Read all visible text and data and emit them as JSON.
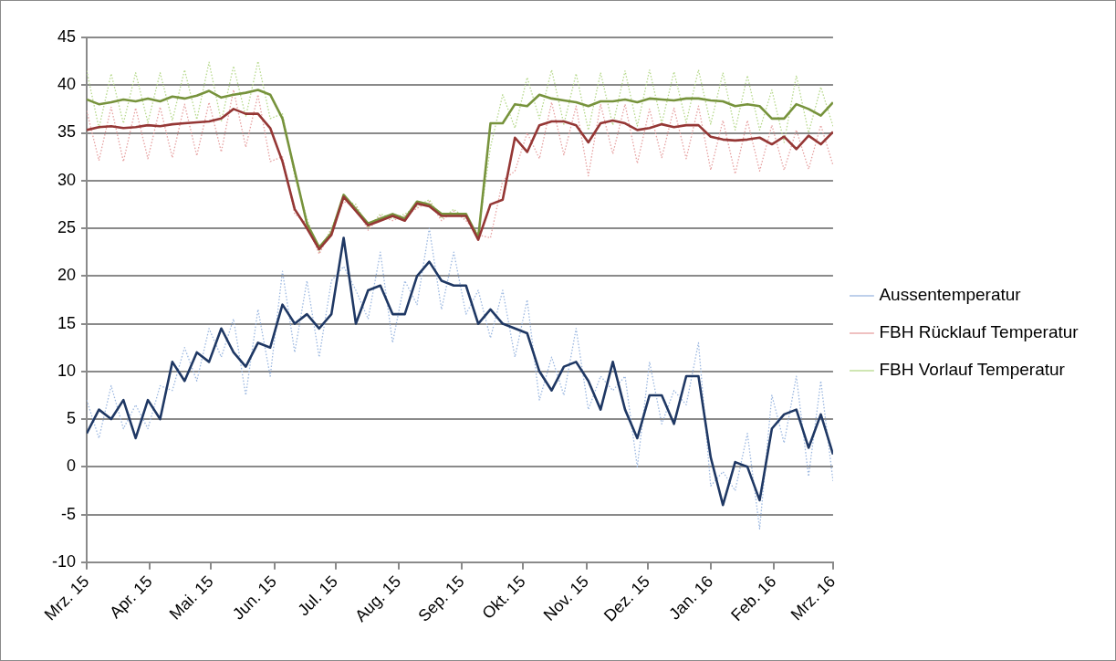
{
  "chart_data": {
    "type": "line",
    "x": [
      "2015-03-01",
      "2015-03-07",
      "2015-03-13",
      "2015-03-19",
      "2015-03-25",
      "2015-03-31",
      "2015-04-06",
      "2015-04-12",
      "2015-04-18",
      "2015-04-24",
      "2015-04-30",
      "2015-05-06",
      "2015-05-12",
      "2015-05-18",
      "2015-05-24",
      "2015-05-30",
      "2015-06-05",
      "2015-06-11",
      "2015-06-17",
      "2015-06-23",
      "2015-06-29",
      "2015-07-05",
      "2015-07-11",
      "2015-07-17",
      "2015-07-23",
      "2015-07-29",
      "2015-08-04",
      "2015-08-10",
      "2015-08-16",
      "2015-08-22",
      "2015-08-28",
      "2015-09-03",
      "2015-09-09",
      "2015-09-15",
      "2015-09-21",
      "2015-09-27",
      "2015-10-03",
      "2015-10-09",
      "2015-10-15",
      "2015-10-21",
      "2015-10-27",
      "2015-11-02",
      "2015-11-08",
      "2015-11-14",
      "2015-11-20",
      "2015-11-26",
      "2015-12-02",
      "2015-12-08",
      "2015-12-14",
      "2015-12-20",
      "2015-12-26",
      "2016-01-01",
      "2016-01-07",
      "2016-01-13",
      "2016-01-19",
      "2016-01-25",
      "2016-01-31",
      "2016-02-06",
      "2016-02-12",
      "2016-02-18",
      "2016-02-24",
      "2016-03-01"
    ],
    "series": [
      {
        "name": "Aussentemperatur",
        "color": "#9bb7e0",
        "line_style": "dotted",
        "values": [
          7,
          3,
          8.5,
          4,
          6.5,
          4,
          8.5,
          8,
          12.5,
          9,
          14.5,
          11.5,
          15.5,
          7.5,
          16.5,
          9.5,
          20.5,
          12,
          19.5,
          11.5,
          19.5,
          21,
          18.5,
          15.5,
          22.5,
          13,
          19.5,
          17,
          25,
          16.5,
          22.5,
          16,
          18.5,
          13.5,
          18.5,
          11.5,
          17.5,
          7,
          11.5,
          7.5,
          14.5,
          6,
          9.5,
          8,
          9.5,
          0,
          11,
          4.5,
          8,
          6.5,
          13,
          -2,
          -0.5,
          -2.5,
          3.5,
          -6.5,
          7.5,
          2.5,
          9.5,
          -1,
          9,
          -1.5
        ]
      },
      {
        "name": "FBH Rücklauf Temperatur",
        "color": "#e6a0a0",
        "line_style": "dotted",
        "values": [
          37.3,
          32.1,
          37.7,
          32,
          37.6,
          32.3,
          37.7,
          32.4,
          38,
          32.6,
          38.2,
          33,
          39.5,
          33.5,
          39,
          32,
          32.5,
          26.5,
          25.5,
          22.3,
          24.8,
          27.8,
          27.3,
          24.8,
          26.3,
          25.8,
          26.3,
          27.1,
          27.8,
          25.8,
          26.8,
          25.8,
          24.3,
          24,
          30,
          31,
          35,
          32.3,
          38.2,
          32.7,
          37.8,
          30.5,
          38,
          32.8,
          38,
          31.8,
          37.5,
          32.4,
          37.6,
          32.3,
          37.8,
          31.1,
          36.3,
          30.7,
          36.3,
          31,
          35.8,
          31.1,
          35.3,
          31.2,
          35.8,
          31.6
        ]
      },
      {
        "name": "FBH Vorlauf Temperatur",
        "color": "#b5d88a",
        "line_style": "dotted",
        "values": [
          41.5,
          35.5,
          41.2,
          36,
          41.3,
          36.1,
          41.3,
          36.3,
          41.6,
          36.4,
          42.4,
          36.2,
          42,
          36.7,
          42.5,
          36.5,
          37,
          30.5,
          26,
          22.5,
          25,
          28,
          27.5,
          25,
          26.5,
          26,
          26.5,
          27.3,
          28,
          26,
          27,
          26,
          24.5,
          33.5,
          39,
          35.5,
          40.8,
          36.5,
          41.6,
          35.9,
          41.2,
          35.3,
          41.3,
          35.8,
          41.5,
          35.7,
          41.6,
          36,
          41.4,
          36.1,
          41.6,
          35.9,
          41.3,
          35.3,
          41,
          35.3,
          39.5,
          34,
          41,
          35,
          39.8,
          35.7
        ]
      },
      {
        "color": "#1f3864",
        "line_style": "solid",
        "values": [
          3.5,
          6,
          5,
          7,
          3,
          7,
          5,
          11,
          9,
          12,
          11,
          14.5,
          12,
          10.5,
          13,
          12.5,
          17,
          15,
          16,
          14.5,
          16,
          24,
          15,
          18.5,
          19,
          16,
          16,
          20,
          21.5,
          19.5,
          19,
          19,
          15,
          16.5,
          15,
          14.5,
          14,
          10,
          8,
          10.5,
          11,
          9,
          6,
          11,
          6,
          3,
          7.5,
          7.5,
          4.5,
          9.5,
          9.5,
          1,
          -4,
          0.5,
          0,
          -3.5,
          4,
          5.5,
          6,
          2,
          5.5,
          1.3
        ]
      },
      {
        "color": "#953735",
        "line_style": "solid",
        "values": [
          35.3,
          35.6,
          35.7,
          35.5,
          35.6,
          35.8,
          35.7,
          35.9,
          36,
          36.1,
          36.2,
          36.5,
          37.5,
          37,
          37,
          35.5,
          32,
          27,
          25,
          22.8,
          24.3,
          28.3,
          26.8,
          25.3,
          25.8,
          26.3,
          25.8,
          27.6,
          27.3,
          26.3,
          26.3,
          26.3,
          23.8,
          27.5,
          28,
          34.5,
          33,
          35.8,
          36.2,
          36.2,
          35.8,
          34,
          36,
          36.3,
          36,
          35.3,
          35.5,
          35.9,
          35.6,
          35.8,
          35.8,
          34.6,
          34.3,
          34.2,
          34.3,
          34.5,
          33.8,
          34.6,
          33.3,
          34.7,
          33.8,
          35.1
        ]
      },
      {
        "color": "#77933c",
        "line_style": "solid",
        "values": [
          38.5,
          38,
          38.2,
          38.5,
          38.3,
          38.6,
          38.3,
          38.8,
          38.6,
          38.9,
          39.4,
          38.7,
          39,
          39.2,
          39.5,
          39,
          36.5,
          31,
          25.5,
          23,
          24.5,
          28.5,
          27,
          25.5,
          26,
          26.5,
          26,
          27.8,
          27.5,
          26.5,
          26.5,
          26.5,
          24,
          36,
          36,
          38,
          37.8,
          39,
          38.6,
          38.4,
          38.2,
          37.8,
          38.3,
          38.3,
          38.5,
          38.2,
          38.6,
          38.5,
          38.4,
          38.6,
          38.6,
          38.4,
          38.3,
          37.8,
          38,
          37.8,
          36.5,
          36.5,
          38,
          37.5,
          36.8,
          38.2
        ]
      }
    ],
    "xlim": [
      "2015-03-01",
      "2016-03-01"
    ],
    "xticks": [
      {
        "value": "2015-03-01",
        "label": "Mrz. 15"
      },
      {
        "value": "2015-04-01",
        "label": "Apr. 15"
      },
      {
        "value": "2015-05-01",
        "label": "Mai. 15"
      },
      {
        "value": "2015-06-01",
        "label": "Jun. 15"
      },
      {
        "value": "2015-07-01",
        "label": "Jul. 15"
      },
      {
        "value": "2015-08-01",
        "label": "Aug. 15"
      },
      {
        "value": "2015-09-01",
        "label": "Sep. 15"
      },
      {
        "value": "2015-10-01",
        "label": "Okt. 15"
      },
      {
        "value": "2015-11-01",
        "label": "Nov. 15"
      },
      {
        "value": "2015-12-01",
        "label": "Dez. 15"
      },
      {
        "value": "2016-01-01",
        "label": "Jan. 16"
      },
      {
        "value": "2016-02-01",
        "label": "Feb. 16"
      },
      {
        "value": "2016-03-01",
        "label": "Mrz. 16"
      }
    ],
    "ylim": [
      -10,
      45
    ],
    "yticks": [
      -10,
      -5,
      0,
      5,
      10,
      15,
      20,
      25,
      30,
      35,
      40,
      45
    ],
    "grid": "y",
    "legend": "right",
    "marker": "none"
  }
}
